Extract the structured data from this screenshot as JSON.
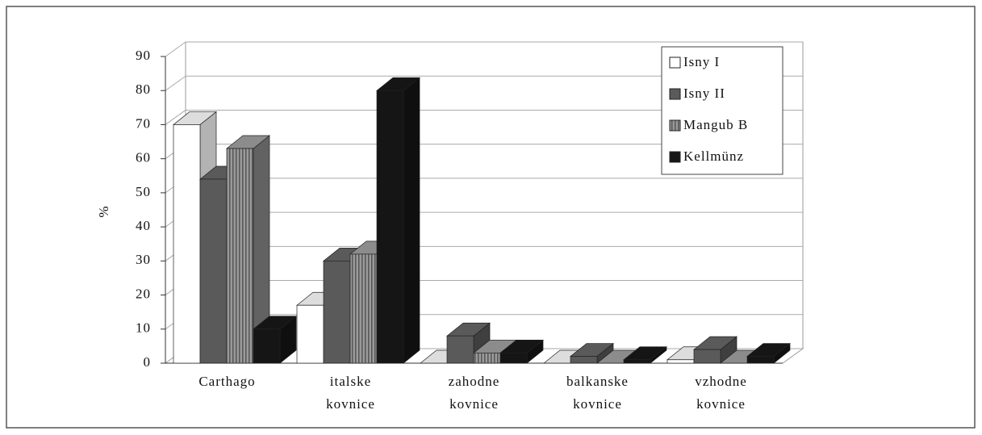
{
  "chart_data": {
    "type": "bar3d",
    "y_label": "%",
    "categories": [
      "Carthago",
      "italske kovnice",
      "zahodne kovnice",
      "balkanske kovnice",
      "vzhodne kovnice"
    ],
    "series": [
      {
        "name": "Isny I",
        "color": "#ffffff",
        "values": [
          70,
          17,
          0,
          0,
          1
        ]
      },
      {
        "name": "Isny II",
        "color": "#5a5a5a",
        "values": [
          54,
          30,
          8,
          2,
          4
        ]
      },
      {
        "name": "Mangub B",
        "color": "#8c8c8c",
        "values": [
          63,
          32,
          3,
          0,
          0
        ]
      },
      {
        "name": "Kellmünz",
        "color": "#151515",
        "values": [
          10,
          80,
          3,
          1,
          2
        ]
      }
    ],
    "ylim": [
      0,
      90
    ],
    "yticks": [
      0,
      10,
      20,
      30,
      40,
      50,
      60,
      70,
      80,
      90
    ],
    "grid": true,
    "legend": "top-right"
  }
}
